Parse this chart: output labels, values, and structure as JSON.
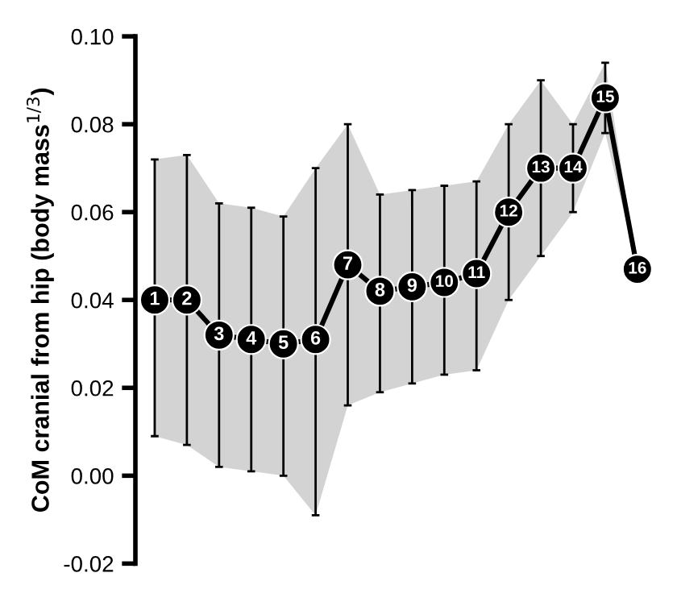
{
  "chart_data": {
    "type": "line",
    "ylabel": "CoM cranial from hip (body mass$^{1/3}$)",
    "categories": [
      "1",
      "2",
      "3",
      "4",
      "5",
      "6",
      "7",
      "8",
      "9",
      "10",
      "11",
      "12",
      "13",
      "14",
      "15",
      "16"
    ],
    "series": [
      {
        "color": "#000000",
        "values": [
          0.04,
          0.04,
          0.032,
          0.031,
          0.03,
          0.031,
          0.048,
          0.042,
          0.043,
          0.044,
          0.046,
          0.06,
          0.07,
          0.07,
          0.086,
          0.047
        ],
        "errors": [
          [
            0.009,
            0.072
          ],
          [
            0.007,
            0.073
          ],
          [
            0.002,
            0.062
          ],
          [
            0.001,
            0.061
          ],
          [
            0.0,
            0.059
          ],
          [
            -0.009,
            0.07
          ],
          [
            0.016,
            0.08
          ],
          [
            0.019,
            0.064
          ],
          [
            0.021,
            0.065
          ],
          [
            0.023,
            0.066
          ],
          [
            0.024,
            0.067
          ],
          [
            0.04,
            0.08
          ],
          [
            0.05,
            0.09
          ],
          [
            0.06,
            0.08
          ],
          [
            0.078,
            0.094
          ],
          null
        ],
        "lower": [
          0.009,
          0.007,
          0.002,
          0.001,
          0.0,
          -0.009,
          0.016,
          0.019,
          0.021,
          0.023,
          0.024,
          0.04,
          0.05,
          0.06,
          0.078,
          0.047
        ],
        "upper": [
          0.072,
          0.073,
          0.062,
          0.061,
          0.059,
          0.07,
          0.08,
          0.064,
          0.065,
          0.066,
          0.067,
          0.08,
          0.09,
          0.08,
          0.094,
          0.047
        ]
      }
    ],
    "ylim": [
      -0.02,
      0.1
    ],
    "yticks": [
      {
        "value": -0.02,
        "label": "-0.02"
      },
      {
        "value": 0.0,
        "label": "0.00"
      },
      {
        "value": 0.02,
        "label": "0.02"
      },
      {
        "value": 0.04,
        "label": "0.04"
      },
      {
        "value": 0.06,
        "label": "0.06"
      },
      {
        "value": 0.08,
        "label": "0.08"
      },
      {
        "value": 0.1,
        "label": "0.10"
      }
    ],
    "tick_labels": "y",
    "marker": "circle",
    "line_style": "solid",
    "grid": false,
    "legend": false
  }
}
